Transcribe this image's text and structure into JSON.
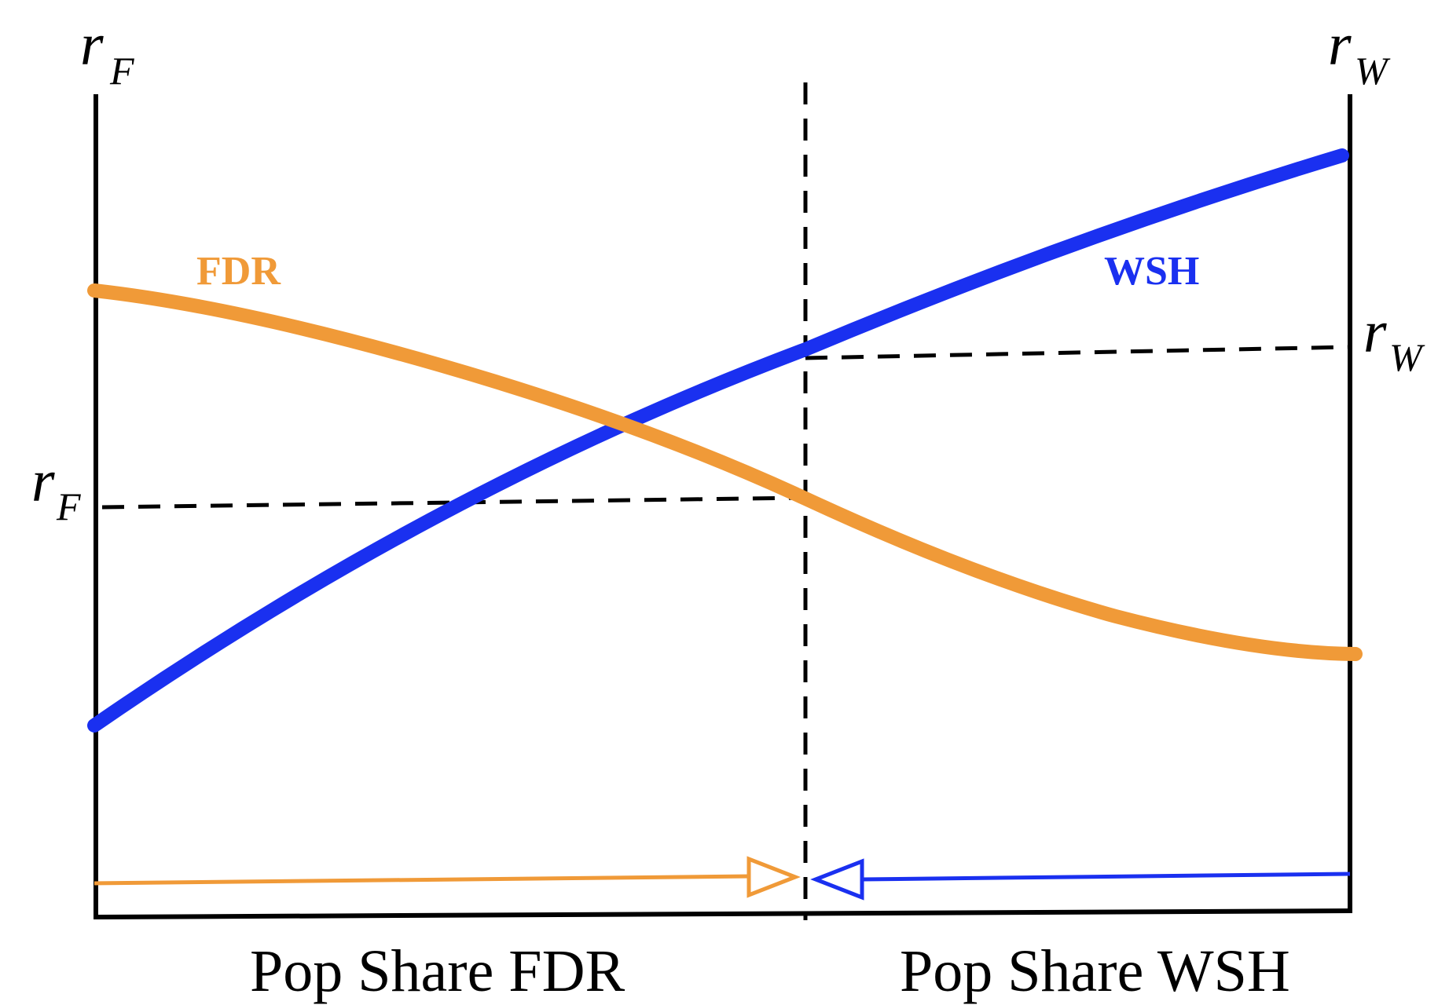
{
  "colors": {
    "fdr": "#F09A38",
    "wsh": "#1A30F0",
    "axis": "#000000",
    "background": "#FFFFFF"
  },
  "left_axis": {
    "symbol": "r",
    "subscript": "F"
  },
  "right_axis": {
    "symbol": "r",
    "subscript": "W"
  },
  "curves": {
    "fdr": {
      "label": "FDR"
    },
    "wsh": {
      "label": "WSH"
    }
  },
  "equilibrium": {
    "left_marker": {
      "symbol": "r",
      "subscript": "F"
    },
    "right_marker": {
      "symbol": "r",
      "subscript": "W"
    }
  },
  "captions": {
    "left": "Pop Share FDR",
    "right": "Pop Share WSH"
  }
}
